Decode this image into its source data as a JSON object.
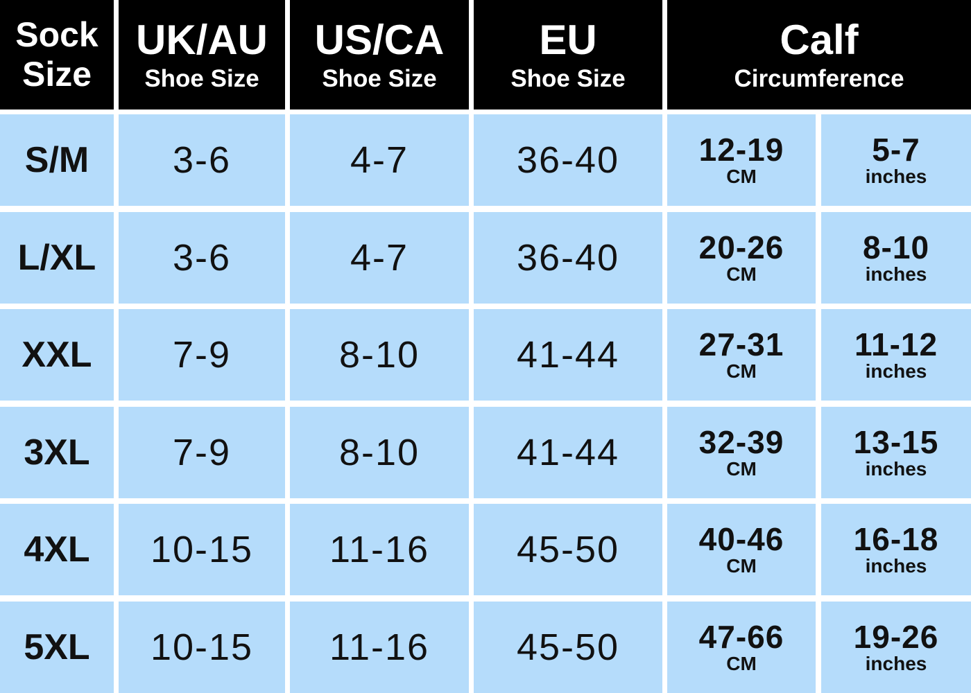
{
  "header": {
    "size": [
      "Sock",
      "Size"
    ],
    "columns": [
      {
        "title": "UK/AU",
        "subtitle": "Shoe Size"
      },
      {
        "title": "US/CA",
        "subtitle": "Shoe Size"
      },
      {
        "title": "EU",
        "subtitle": "Shoe Size"
      },
      {
        "title": "Calf",
        "subtitle": "Circumference"
      }
    ]
  },
  "rows": [
    {
      "size": "S/M",
      "uk": "3-6",
      "us": "4-7",
      "eu": "36-40",
      "cm": "12-19",
      "cm_unit": "CM",
      "in": "5-7",
      "in_unit": "inches"
    },
    {
      "size": "L/XL",
      "uk": "3-6",
      "us": "4-7",
      "eu": "36-40",
      "cm": "20-26",
      "cm_unit": "CM",
      "in": "8-10",
      "in_unit": "inches"
    },
    {
      "size": "XXL",
      "uk": "7-9",
      "us": "8-10",
      "eu": "41-44",
      "cm": "27-31",
      "cm_unit": "CM",
      "in": "11-12",
      "in_unit": "inches"
    },
    {
      "size": "3XL",
      "uk": "7-9",
      "us": "8-10",
      "eu": "41-44",
      "cm": "32-39",
      "cm_unit": "CM",
      "in": "13-15",
      "in_unit": "inches"
    },
    {
      "size": "4XL",
      "uk": "10-15",
      "us": "11-16",
      "eu": "45-50",
      "cm": "40-46",
      "cm_unit": "CM",
      "in": "16-18",
      "in_unit": "inches"
    },
    {
      "size": "5XL",
      "uk": "10-15",
      "us": "11-16",
      "eu": "45-50",
      "cm": "47-66",
      "cm_unit": "CM",
      "in": "19-26",
      "in_unit": "inches"
    }
  ]
}
